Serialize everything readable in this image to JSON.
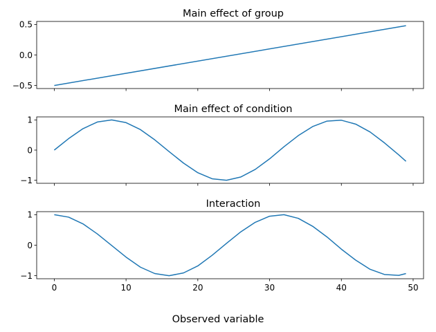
{
  "figure": {
    "supxlabel": "Observed variable",
    "line_color": "#1f77b4"
  },
  "chart_data": [
    {
      "type": "line",
      "title": "Main effect of group",
      "xlabel": "",
      "ylabel": "",
      "xlim": [
        -2.45,
        51.45
      ],
      "ylim": [
        -0.55,
        0.55
      ],
      "xticks": [
        0,
        10,
        20,
        30,
        40,
        50
      ],
      "yticks": [
        -0.5,
        0.0,
        0.5
      ],
      "ytick_labels": [
        "−0.5",
        "0.0",
        "0.5"
      ],
      "show_xtick_labels": false,
      "grid": false,
      "x": [
        0,
        49
      ],
      "y": [
        -0.5,
        0.48
      ]
    },
    {
      "type": "line",
      "title": "Main effect of condition",
      "xlabel": "",
      "ylabel": "",
      "xlim": [
        -2.45,
        51.45
      ],
      "ylim": [
        -1.1,
        1.1
      ],
      "xticks": [
        0,
        10,
        20,
        30,
        40,
        50
      ],
      "yticks": [
        -1,
        0,
        1
      ],
      "ytick_labels": [
        "−1",
        "0",
        "1"
      ],
      "show_xtick_labels": false,
      "grid": false,
      "x": [
        0,
        2,
        4,
        6,
        8,
        10,
        12,
        14,
        16,
        18,
        20,
        22,
        24,
        26,
        28,
        30,
        32,
        34,
        36,
        38,
        40,
        42,
        44,
        46,
        48,
        49
      ],
      "y": [
        0.0,
        0.38,
        0.71,
        0.93,
        1.0,
        0.91,
        0.68,
        0.34,
        -0.05,
        -0.43,
        -0.75,
        -0.95,
        -1.0,
        -0.89,
        -0.64,
        -0.29,
        0.11,
        0.48,
        0.78,
        0.96,
        0.99,
        0.86,
        0.6,
        0.24,
        -0.16,
        -0.37
      ]
    },
    {
      "type": "line",
      "title": "Interaction",
      "xlabel": "",
      "ylabel": "",
      "xlim": [
        -2.45,
        51.45
      ],
      "ylim": [
        -1.1,
        1.1
      ],
      "xticks": [
        0,
        10,
        20,
        30,
        40,
        50
      ],
      "xtick_labels": [
        "0",
        "10",
        "20",
        "30",
        "40",
        "50"
      ],
      "yticks": [
        -1,
        0,
        1
      ],
      "ytick_labels": [
        "−1",
        "0",
        "1"
      ],
      "show_xtick_labels": true,
      "grid": false,
      "x": [
        0,
        2,
        4,
        6,
        8,
        10,
        12,
        14,
        16,
        18,
        20,
        22,
        24,
        26,
        28,
        30,
        32,
        34,
        36,
        38,
        40,
        42,
        44,
        46,
        48,
        49
      ],
      "y": [
        1.0,
        0.92,
        0.7,
        0.37,
        -0.01,
        -0.39,
        -0.72,
        -0.93,
        -1.0,
        -0.91,
        -0.68,
        -0.33,
        0.06,
        0.44,
        0.75,
        0.95,
        1.0,
        0.88,
        0.62,
        0.27,
        -0.13,
        -0.49,
        -0.79,
        -0.96,
        -0.99,
        -0.93
      ]
    }
  ]
}
